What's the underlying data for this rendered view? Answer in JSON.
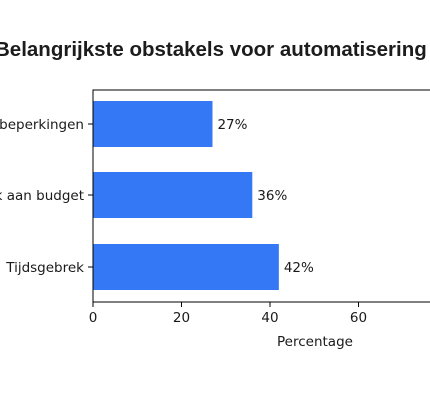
{
  "chart_data": {
    "type": "bar",
    "orientation": "horizontal",
    "title": "Belangrijkste obstakels voor automatisering",
    "xlabel": "Percentage",
    "ylabel": "",
    "categories": [
      "Tijdsgebrek",
      "Gebrek aan budget",
      "Technische beperkingen"
    ],
    "values": [
      42,
      36,
      27
    ],
    "value_labels": [
      "42%",
      "36%",
      "27%"
    ],
    "xticks": [
      0,
      20,
      40,
      60
    ],
    "xlim": [
      0,
      75
    ],
    "bar_color": "#3478f6",
    "grid": false,
    "legend": "none"
  }
}
